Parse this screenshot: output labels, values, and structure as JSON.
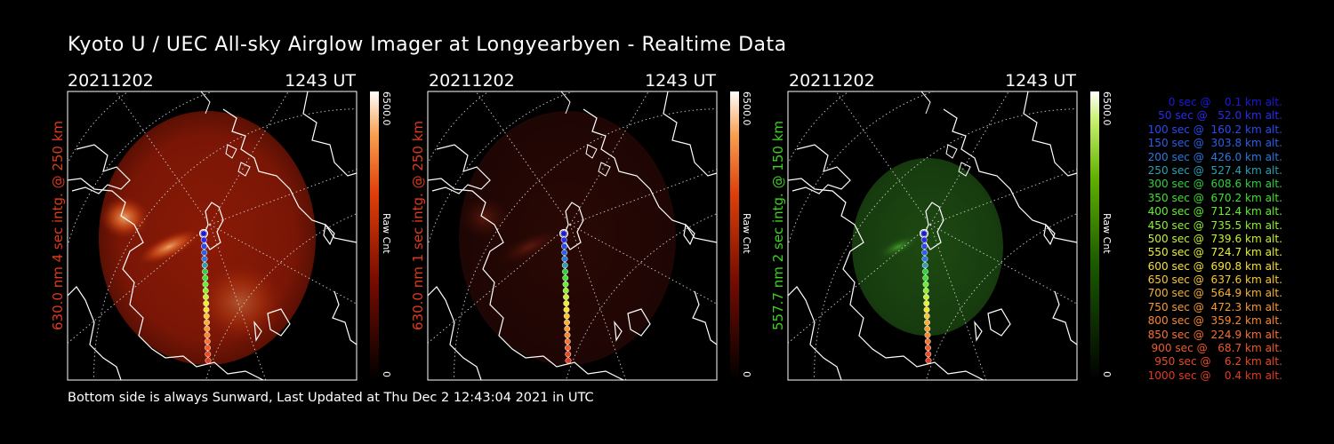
{
  "title": "Kyoto U / UEC All-sky Airglow Imager at Longyearbyen - Realtime Data",
  "footer": "Bottom side is always Sunward, Last Updated at Thu Dec  2 12:43:04 2021 in UTC",
  "panels": [
    {
      "date": "20211202",
      "time": "1243 UT",
      "ylabel": "630.0 nm 4 sec intg. @ 250 km",
      "label_color": "#e03a1a",
      "colorbar_max": "6500.0",
      "colorbar_min": "0",
      "colorbar_label": "Raw Cnt",
      "colormap": "red"
    },
    {
      "date": "20211202",
      "time": "1243 UT",
      "ylabel": "630.0 nm 1 sec intg. @ 250 km",
      "label_color": "#e03a1a",
      "colorbar_max": "6500.0",
      "colorbar_min": "0",
      "colorbar_label": "Raw Cnt",
      "colormap": "red"
    },
    {
      "date": "20211202",
      "time": "1243 UT",
      "ylabel": "557.7 nm 2 sec intg. @ 150 km",
      "label_color": "#3cd21e",
      "colorbar_max": "6500.0",
      "colorbar_min": "0",
      "colorbar_label": "Raw Cnt",
      "colormap": "green"
    }
  ],
  "trajectory_legend": [
    {
      "text": "0 sec @    0.1 km alt.",
      "color": "#1a1adc"
    },
    {
      "text": "50 sec @   52.0 km alt.",
      "color": "#2a2af0"
    },
    {
      "text": "100 sec @  160.2 km alt.",
      "color": "#2a4af0"
    },
    {
      "text": "150 sec @  303.8 km alt.",
      "color": "#2a60e8"
    },
    {
      "text": "200 sec @  426.0 km alt.",
      "color": "#2a78e0"
    },
    {
      "text": "250 sec @  527.4 km alt.",
      "color": "#2aa0b0"
    },
    {
      "text": "300 sec @  608.6 km alt.",
      "color": "#30d040"
    },
    {
      "text": "350 sec @  670.2 km alt.",
      "color": "#40e030"
    },
    {
      "text": "400 sec @  712.4 km alt.",
      "color": "#60f030"
    },
    {
      "text": "450 sec @  735.5 km alt.",
      "color": "#90f030"
    },
    {
      "text": "500 sec @  739.6 km alt.",
      "color": "#c8f030"
    },
    {
      "text": "550 sec @  724.7 km alt.",
      "color": "#e8f030"
    },
    {
      "text": "600 sec @  690.8 km alt.",
      "color": "#f8e030"
    },
    {
      "text": "650 sec @  637.6 km alt.",
      "color": "#f8c830"
    },
    {
      "text": "700 sec @  564.9 km alt.",
      "color": "#f8b030"
    },
    {
      "text": "750 sec @  472.3 km alt.",
      "color": "#f89a30"
    },
    {
      "text": "800 sec @  359.2 km alt.",
      "color": "#f88830"
    },
    {
      "text": "850 sec @  224.9 km alt.",
      "color": "#f87030"
    },
    {
      "text": "900 sec @   68.7 km alt.",
      "color": "#f05a28"
    },
    {
      "text": "950 sec @    6.2 km alt.",
      "color": "#e84a24"
    },
    {
      "text": "1000 sec @    0.4 km alt.",
      "color": "#e03a20"
    }
  ]
}
